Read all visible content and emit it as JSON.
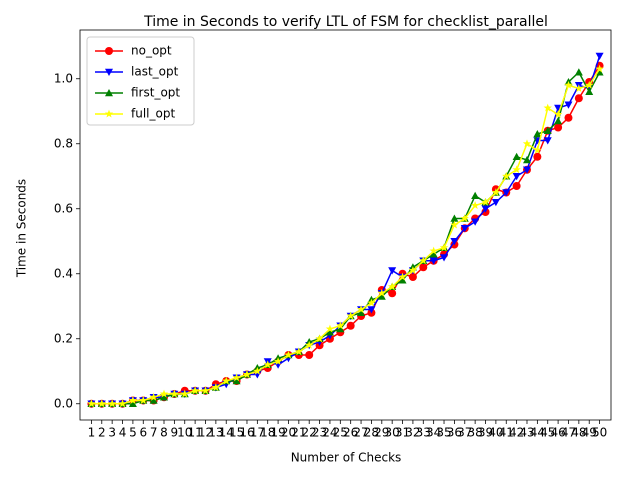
{
  "chart_data": {
    "type": "line",
    "title": "Time in Seconds to verify LTL of FSM for checklist_parallel",
    "x_label": "Number of Checks",
    "y_label": "Time in Seconds",
    "categories": [
      "1",
      "2",
      "3",
      "4",
      "5",
      "6",
      "7",
      "8",
      "9",
      "10",
      "11",
      "12",
      "13",
      "14",
      "15",
      "16",
      "17",
      "18",
      "19",
      "20",
      "21",
      "22",
      "23",
      "24",
      "25",
      "26",
      "27",
      "28",
      "29",
      "30",
      "31",
      "32",
      "33",
      "34",
      "35",
      "36",
      "37",
      "38",
      "39",
      "40",
      "41",
      "42",
      "43",
      "44",
      "45",
      "46",
      "47",
      "48",
      "49",
      "50"
    ],
    "series": [
      {
        "name": "no_opt",
        "color": "#ff0000",
        "marker": "circle",
        "values": [
          0,
          0,
          0,
          0,
          0.01,
          0.01,
          0.01,
          0.02,
          0.03,
          0.04,
          0.04,
          0.04,
          0.06,
          0.07,
          0.07,
          0.09,
          0.1,
          0.11,
          0.13,
          0.15,
          0.15,
          0.15,
          0.18,
          0.2,
          0.22,
          0.24,
          0.27,
          0.28,
          0.35,
          0.34,
          0.4,
          0.39,
          0.42,
          0.44,
          0.46,
          0.49,
          0.54,
          0.57,
          0.59,
          0.66,
          0.65,
          0.67,
          0.72,
          0.76,
          0.84,
          0.85,
          0.88,
          0.94,
          0.99,
          1.04
        ]
      },
      {
        "name": "last_opt",
        "color": "#0000ff",
        "marker": "triangle-down",
        "values": [
          0,
          0,
          0,
          0,
          0.01,
          0.01,
          0.02,
          0.02,
          0.03,
          0.03,
          0.04,
          0.04,
          0.05,
          0.06,
          0.08,
          0.09,
          0.09,
          0.13,
          0.12,
          0.14,
          0.16,
          0.18,
          0.19,
          0.21,
          0.24,
          0.27,
          0.29,
          0.29,
          0.34,
          0.41,
          0.39,
          0.41,
          0.44,
          0.44,
          0.45,
          0.5,
          0.54,
          0.56,
          0.6,
          0.62,
          0.65,
          0.7,
          0.72,
          0.81,
          0.81,
          0.91,
          0.92,
          0.98,
          0.97,
          1.07
        ]
      },
      {
        "name": "first_opt",
        "color": "#008000",
        "marker": "triangle-up",
        "values": [
          0,
          0,
          0,
          0,
          0,
          0.01,
          0.01,
          0.02,
          0.03,
          0.03,
          0.04,
          0.04,
          0.05,
          0.07,
          0.07,
          0.09,
          0.11,
          0.12,
          0.14,
          0.15,
          0.16,
          0.19,
          0.2,
          0.22,
          0.23,
          0.27,
          0.28,
          0.32,
          0.33,
          0.36,
          0.38,
          0.42,
          0.44,
          0.46,
          0.48,
          0.57,
          0.57,
          0.64,
          0.62,
          0.65,
          0.7,
          0.76,
          0.75,
          0.83,
          0.84,
          0.87,
          0.99,
          1.02,
          0.96,
          1.02
        ]
      },
      {
        "name": "full_opt",
        "color": "#ffff00",
        "marker": "star",
        "values": [
          0,
          0,
          0,
          0,
          0.01,
          0.01,
          0.02,
          0.03,
          0.03,
          0.03,
          0.04,
          0.04,
          0.05,
          0.07,
          0.08,
          0.09,
          0.1,
          0.12,
          0.13,
          0.15,
          0.16,
          0.18,
          0.2,
          0.23,
          0.24,
          0.27,
          0.29,
          0.31,
          0.34,
          0.36,
          0.39,
          0.41,
          0.44,
          0.47,
          0.48,
          0.55,
          0.57,
          0.61,
          0.62,
          0.65,
          0.7,
          0.72,
          0.8,
          0.78,
          0.91,
          0.89,
          0.98,
          0.97,
          0.98,
          1.03
        ]
      }
    ],
    "ylim": [
      -0.05,
      1.15
    ],
    "yticks": [
      {
        "value": 0,
        "label": "0.0"
      },
      {
        "value": 0.2,
        "label": "0.2"
      },
      {
        "value": 0.4,
        "label": "0.4"
      },
      {
        "value": 0.6,
        "label": "0.6"
      },
      {
        "value": 0.8,
        "label": "0.8"
      },
      {
        "value": 1,
        "label": "1.0"
      }
    ],
    "grid": false,
    "legend": "upper-left"
  }
}
